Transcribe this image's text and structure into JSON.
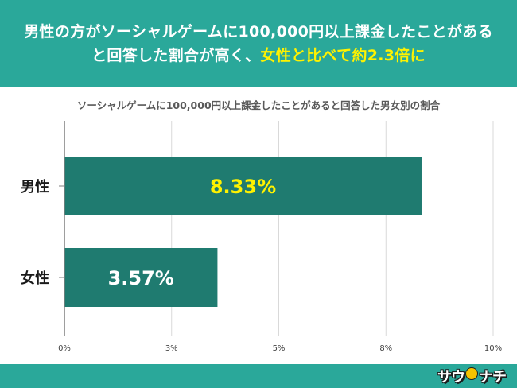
{
  "header": {
    "line1": "男性の方がソーシャルゲームに100,000円以上課金したことがある",
    "line2_part1": "と回答した割合が高く、",
    "line2_highlight": "女性と比べて約2.3倍に"
  },
  "colors": {
    "banner": "#2aa89a",
    "bar": "#1f7b70",
    "highlight": "#fff200"
  },
  "chart_data": {
    "type": "bar",
    "orientation": "horizontal",
    "title": "ソーシャルゲームに100,000円以上課金したことがあると回答した男女別の割合",
    "categories": [
      "男性",
      "女性"
    ],
    "values": [
      8.33,
      3.57
    ],
    "data_labels": [
      "8.33%",
      "3.57%"
    ],
    "data_label_colors": [
      "#fff200",
      "#ffffff"
    ],
    "xlim": [
      0,
      10
    ],
    "x_ticks": [
      0,
      2.5,
      5,
      7.5,
      10
    ],
    "x_tick_labels": [
      "0%",
      "3%",
      "5%",
      "8%",
      "10%"
    ],
    "grid": true,
    "legend": "none"
  },
  "footer": {
    "logo_text_1": "サウ",
    "logo_text_2": "ナチ"
  }
}
